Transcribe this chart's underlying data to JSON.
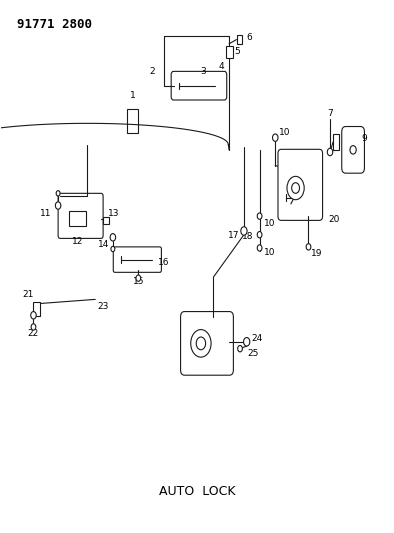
{
  "title": "91771 2800",
  "subtitle": "AUTO  LOCK",
  "background_color": "#ffffff",
  "line_color": "#1a1a1a",
  "text_color": "#000000",
  "fig_width": 3.94,
  "fig_height": 5.33,
  "dpi": 100
}
